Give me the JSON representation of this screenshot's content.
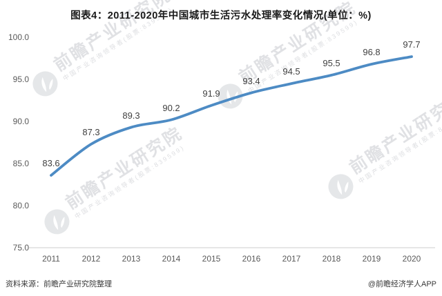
{
  "title": "图表4：2011-2020年中国城市生活污水处理率变化情况(单位：%)",
  "chart_data": {
    "type": "line",
    "title": "图表4：2011-2020年中国城市生活污水处理率变化情况(单位：%)",
    "categories": [
      "2011",
      "2012",
      "2013",
      "2014",
      "2015",
      "2016",
      "2017",
      "2018",
      "2019",
      "2020"
    ],
    "series": [
      {
        "name": "城市生活污水处理率",
        "values": [
          83.6,
          87.3,
          89.3,
          90.2,
          91.9,
          93.4,
          94.5,
          95.5,
          96.8,
          97.7
        ]
      }
    ],
    "data_labels_visible": true,
    "xlabel": "",
    "ylabel": "",
    "ylim": [
      75.0,
      100.0
    ],
    "ytick_step": 5,
    "yticks": [
      "100.0",
      "95.0",
      "90.0",
      "85.0",
      "80.0",
      "75.0"
    ],
    "grid": false,
    "legend_position": "none",
    "line_color": "#4d8bc4",
    "axis_color": "#d6d6d6",
    "tick_color": "#595959",
    "data_label_color": "#3f3f3f"
  },
  "watermark": {
    "big_text": "前瞻产业研究院",
    "small_text": "中国产业咨询领导者(股票:839599)",
    "logo": "qianzhan-globe-logo"
  },
  "footer": {
    "source": "资料来源：前瞻产业研究院整理",
    "credit": "@前瞻经济学人APP"
  }
}
